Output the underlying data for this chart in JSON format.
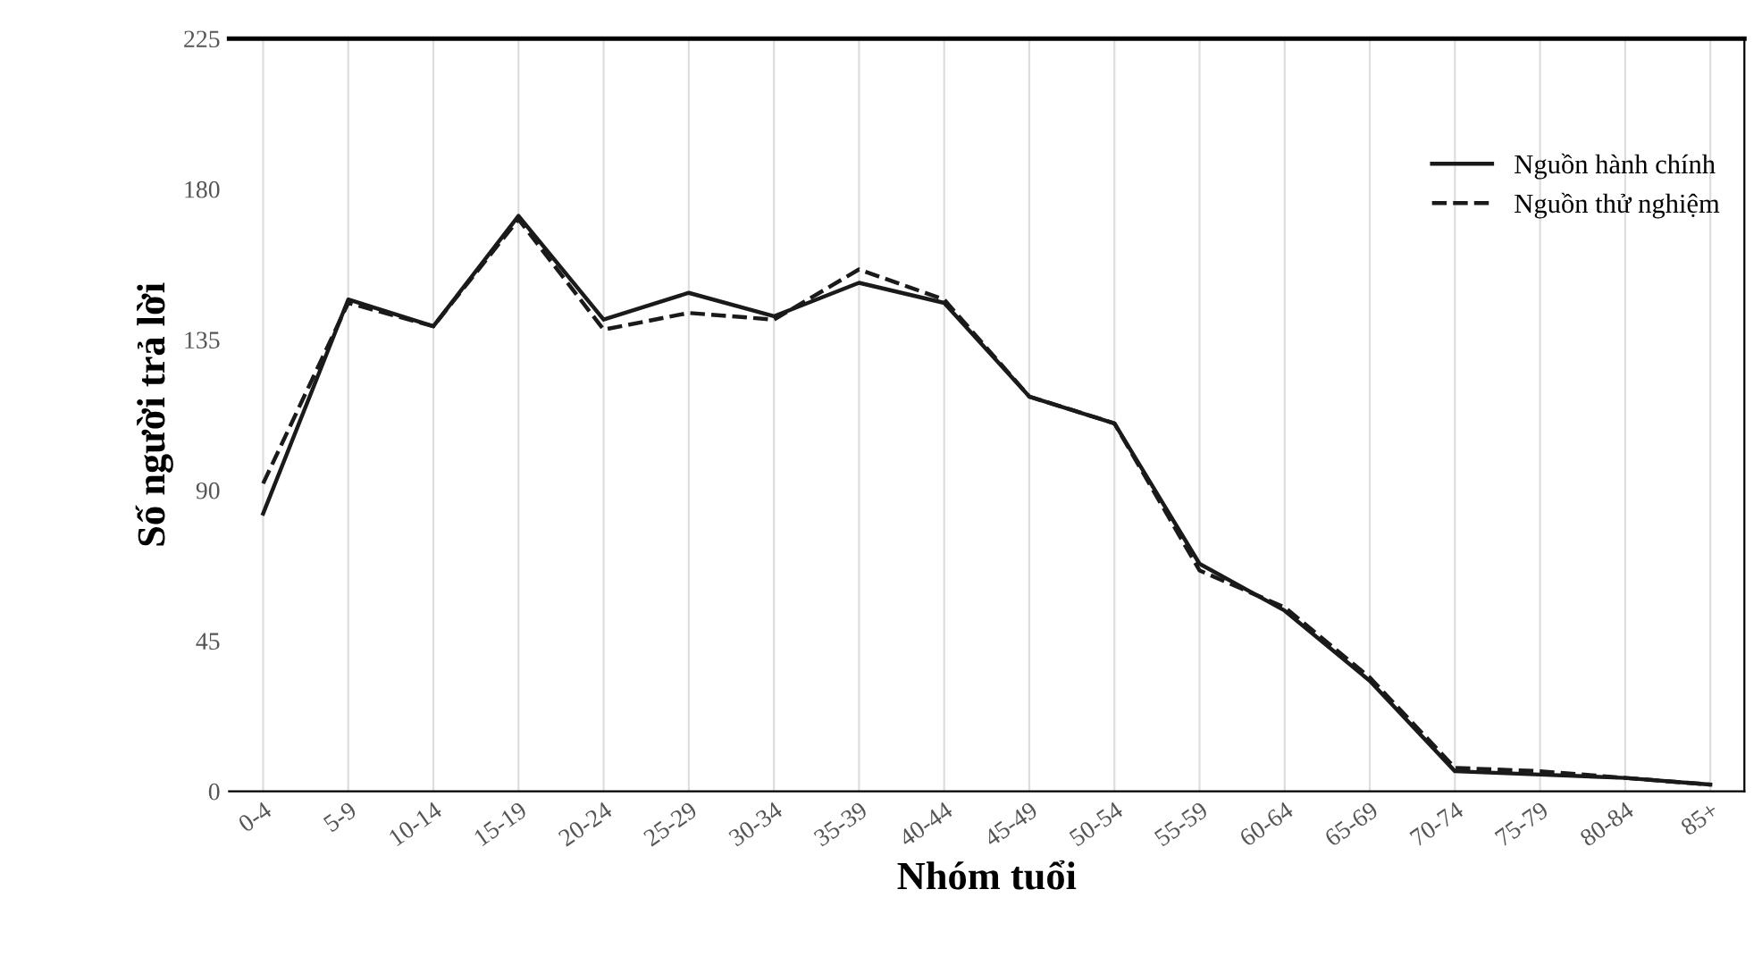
{
  "chart_data": {
    "type": "line",
    "xlabel": "Nhóm tuổi",
    "ylabel": "Số người trả lời",
    "categories": [
      "0-4",
      "5-9",
      "10-14",
      "15-19",
      "20-24",
      "25-29",
      "30-34",
      "35-39",
      "40-44",
      "45-49",
      "50-54",
      "55-59",
      "60-64",
      "65-69",
      "70-74",
      "75-79",
      "80-84",
      "85+"
    ],
    "series": [
      {
        "name": "Nguồn hành chính",
        "color": "#1a1a1a",
        "line_style": "solid",
        "values": [
          83,
          147,
          139,
          172,
          141,
          149,
          142,
          152,
          146,
          118,
          110,
          68,
          54,
          33,
          6,
          5,
          4,
          2
        ]
      },
      {
        "name": "Nguồn thử nghiệm",
        "color": "#1a1a1a",
        "line_style": "dashed",
        "values": [
          92,
          146,
          139,
          171,
          138,
          143,
          141,
          156,
          147,
          118,
          110,
          66,
          55,
          34,
          7,
          6,
          4,
          2
        ]
      }
    ],
    "ylim": [
      0,
      225
    ],
    "yticks": [
      0,
      45,
      90,
      135,
      180,
      225
    ],
    "grid": "x",
    "legend": "top right",
    "marker": "none"
  }
}
